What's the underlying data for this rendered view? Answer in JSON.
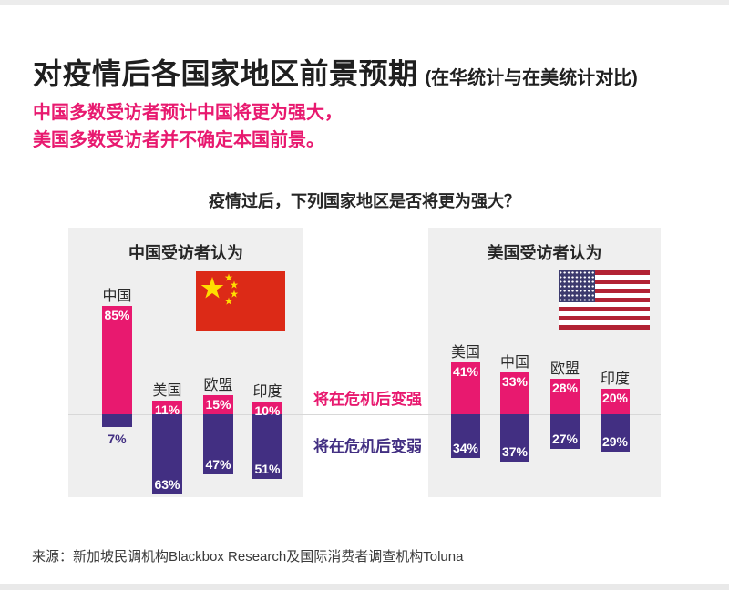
{
  "header": {
    "title": "对疫情后各国家地区前景预期",
    "title_suffix": "(在华统计与在美统计对比)",
    "subtitle_line1": "中国多数受访者预计中国将更为强大，",
    "subtitle_line2": "美国多数受访者并不确定本国前景。"
  },
  "question": "疫情过后，下列国家地区是否将更为强大？",
  "legend": {
    "stronger_label": "将在危机后变强",
    "weaker_label": "将在危机后变弱"
  },
  "source": "来源：新加坡民调机构Blackbox Research及国际消费者调查机构Toluna",
  "colors": {
    "stronger_pink": "#E8196F",
    "weaker_purple": "#422F82",
    "panel_background": "#EFEFEF",
    "baseline_gray": "#D8D8D8",
    "china_flag_red": "#DC2A17",
    "china_flag_yellow": "#FFDE00",
    "us_flag_red": "#B22234",
    "us_flag_blue": "#3C3B6E"
  },
  "chart_data": [
    {
      "type": "bar",
      "panel_title": "中国受访者认为",
      "flag_icon": "china-flag",
      "categories": [
        "中国",
        "美国",
        "欧盟",
        "印度"
      ],
      "series": [
        {
          "name": "将在危机后变强",
          "values": [
            85,
            11,
            15,
            10
          ]
        },
        {
          "name": "将在危机后变弱",
          "values": [
            7,
            63,
            47,
            51
          ]
        }
      ],
      "unit": "%",
      "layout_hint": "diverging stacked bars: stronger above shared baseline, weaker below"
    },
    {
      "type": "bar",
      "panel_title": "美国受访者认为",
      "flag_icon": "us-flag",
      "categories": [
        "美国",
        "中国",
        "欧盟",
        "印度"
      ],
      "series": [
        {
          "name": "将在危机后变强",
          "values": [
            41,
            33,
            28,
            20
          ]
        },
        {
          "name": "将在危机后变弱",
          "values": [
            34,
            37,
            27,
            29
          ]
        }
      ],
      "unit": "%",
      "layout_hint": "diverging stacked bars: stronger above shared baseline, weaker below"
    }
  ]
}
